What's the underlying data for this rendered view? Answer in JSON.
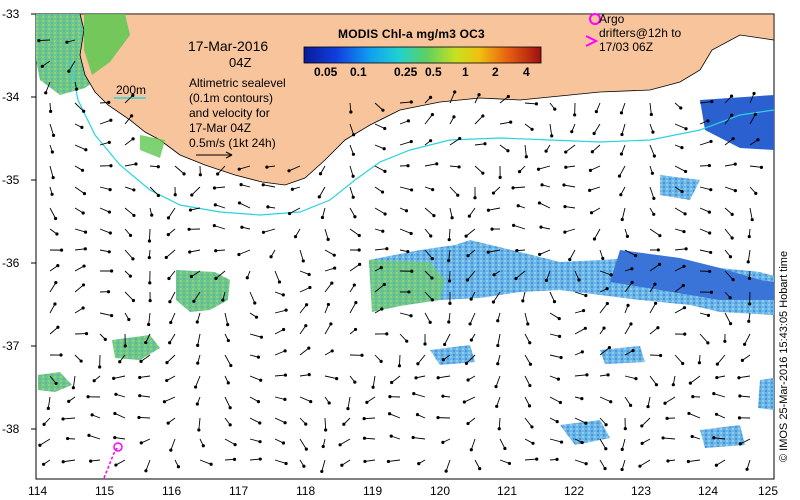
{
  "map": {
    "date_line1": "17-Mar-2016",
    "date_line2": "04Z",
    "altimetry_lines": [
      "Altimetric sealevel",
      "(0.1m contours)",
      "and velocity for",
      "17-Mar 04Z",
      "0.5m/s (1kt 24h)"
    ],
    "contour_label": "200m",
    "colorbar": {
      "title": "MODIS Chl-a mg/m3 OC3",
      "ticks": [
        "0.05",
        "0.1",
        "0.25",
        "0.5",
        "1",
        "2",
        "4"
      ]
    },
    "argo_lines": [
      "Argo",
      "drifters@12h to",
      "17/03 06Z"
    ],
    "credit": "© IMOS 25-Mar-2016 15:43:05 Hobart time",
    "y_axis": [
      "-33",
      "-34",
      "-35",
      "-36",
      "-37",
      "-38"
    ],
    "x_axis": [
      "114",
      "115",
      "116",
      "117",
      "118",
      "119",
      "120",
      "121",
      "122",
      "123",
      "124",
      "125"
    ],
    "colors": {
      "land": "#f8c49c",
      "isobath_200m": "#29d4e0",
      "argo": "#ff00ff",
      "velocity_arrow": "#000000"
    }
  }
}
